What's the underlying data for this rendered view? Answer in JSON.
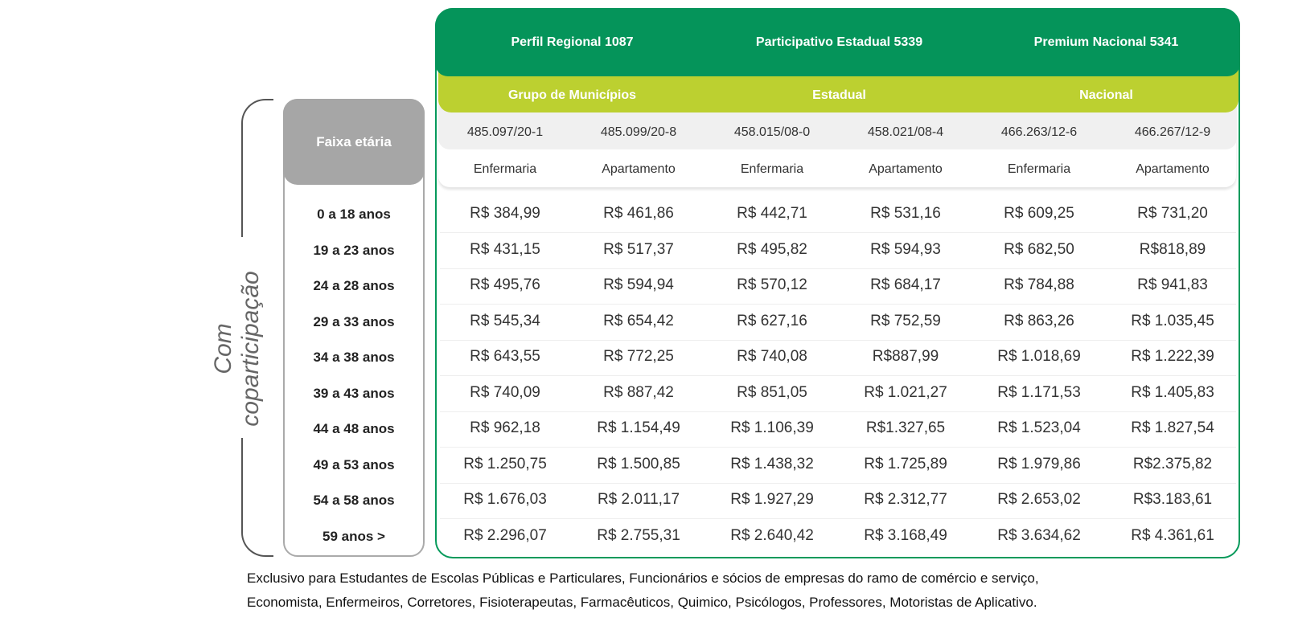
{
  "side_label": "Com coparticipação",
  "age_header": "Faixa etária",
  "ages": [
    "0 a 18 anos",
    "19 a 23 anos",
    "24 a 28 anos",
    "29 a 33 anos",
    "34 a 38 anos",
    "39 a 43 anos",
    "44 a 48 anos",
    "49 a 53 anos",
    "54 a 58 anos",
    "59 anos >"
  ],
  "plans": [
    "Perfil Regional 1087",
    "Participativo Estadual 5339",
    "Premium Nacional 5341"
  ],
  "coverage": [
    "Grupo de Municípios",
    "Estadual",
    "Nacional"
  ],
  "codes": [
    "485.097/20-1",
    "485.099/20-8",
    "458.015/08-0",
    "458.021/08-4",
    "466.263/12-6",
    "466.267/12-9"
  ],
  "types": [
    "Enfermaria",
    "Apartamento",
    "Enfermaria",
    "Apartamento",
    "Enfermaria",
    "Apartamento"
  ],
  "rows": [
    [
      "R$ 384,99",
      "R$ 461,86",
      "R$ 442,71",
      "R$ 531,16",
      "R$ 609,25",
      "R$ 731,20"
    ],
    [
      "R$ 431,15",
      "R$ 517,37",
      "R$ 495,82",
      "R$ 594,93",
      "R$ 682,50",
      "R$818,89"
    ],
    [
      "R$ 495,76",
      "R$ 594,94",
      "R$ 570,12",
      "R$ 684,17",
      "R$ 784,88",
      "R$ 941,83"
    ],
    [
      "R$ 545,34",
      "R$ 654,42",
      "R$ 627,16",
      "R$ 752,59",
      "R$ 863,26",
      "R$ 1.035,45"
    ],
    [
      "R$ 643,55",
      "R$ 772,25",
      "R$ 740,08",
      "R$887,99",
      "R$ 1.018,69",
      "R$ 1.222,39"
    ],
    [
      "R$ 740,09",
      "R$ 887,42",
      "R$ 851,05",
      "R$ 1.021,27",
      "R$ 1.171,53",
      "R$ 1.405,83"
    ],
    [
      "R$ 962,18",
      "R$ 1.154,49",
      "R$ 1.106,39",
      "R$1.327,65",
      "R$ 1.523,04",
      "R$ 1.827,54"
    ],
    [
      "R$ 1.250,75",
      "R$ 1.500,85",
      "R$ 1.438,32",
      "R$ 1.725,89",
      "R$ 1.979,86",
      "R$2.375,82"
    ],
    [
      "R$ 1.676,03",
      "R$ 2.011,17",
      "R$ 1.927,29",
      "R$ 2.312,77",
      "R$ 2.653,02",
      "R$3.183,61"
    ],
    [
      "R$ 2.296,07",
      "R$ 2.755,31",
      "R$ 2.640,42",
      "R$ 3.168,49",
      "R$ 3.634,62",
      "R$ 4.361,61"
    ]
  ],
  "footer": [
    "Exclusivo para Estudantes de Escolas Públicas e Particulares, Funcionários e sócios de empresas do ramo de comércio e serviço,",
    "Economista, Enfermeiros, Corretores, Fisioterapeutas, Farmacêuticos, Quimico, Psicólogos, Professores, Motoristas de Aplicativo."
  ],
  "colors": {
    "dark_green": "#05945a",
    "lime": "#bcd030",
    "grey": "#a6a6a6"
  }
}
